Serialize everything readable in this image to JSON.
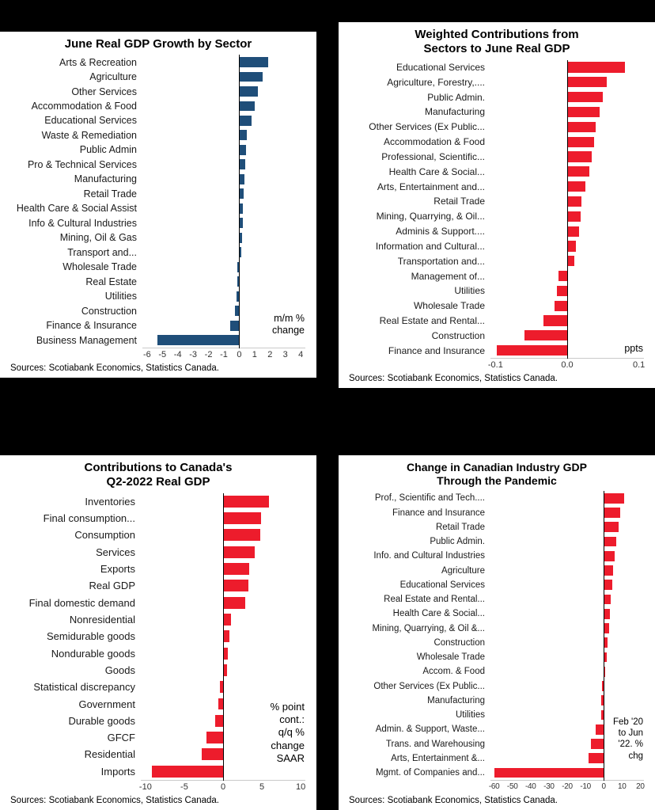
{
  "page": {
    "background": "#000000",
    "panel_background": "#ffffff"
  },
  "chart_data": [
    {
      "type": "bar",
      "orientation": "horizontal",
      "title_lines": [
        "June Real GDP Growth by Sector"
      ],
      "unit_note_lines": [
        "m/m %",
        "change"
      ],
      "sources": "Sources: Scotiabank Economics, Statistics Canada.",
      "bar_color": "#1f4e79",
      "xlim": [
        -6.3,
        4.3
      ],
      "xticks": [
        -6,
        -5,
        -4,
        -3,
        -2,
        -1,
        0,
        1,
        2,
        3,
        4
      ],
      "xtick_labels": [
        "-6",
        "-5",
        "-4",
        "-3",
        "-2",
        "-1",
        "0",
        "1",
        "2",
        "3",
        "4"
      ],
      "grid": false,
      "legend": false,
      "categories": [
        "Arts & Recreation",
        "Agriculture",
        "Other Services",
        "Accommodation & Food",
        "Educational Services",
        "Waste & Remediation",
        "Public Admin",
        "Pro & Technical Services",
        "Manufacturing",
        "Retail Trade",
        "Health Care & Social Assist",
        "Info & Cultural Industries",
        "Mining, Oil & Gas",
        "Transport and...",
        "Wholesale Trade",
        "Real Estate",
        "Utilities",
        "Construction",
        "Finance & Insurance",
        "Business Management"
      ],
      "values": [
        1.9,
        1.5,
        1.2,
        1.0,
        0.8,
        0.5,
        0.45,
        0.4,
        0.35,
        0.3,
        0.25,
        0.25,
        0.2,
        0.15,
        -0.1,
        -0.15,
        -0.2,
        -0.3,
        -0.6,
        -5.3
      ]
    },
    {
      "type": "bar",
      "orientation": "horizontal",
      "title_lines": [
        "Weighted Contributions from",
        "Sectors to June Real GDP"
      ],
      "unit_note_lines": [
        "ppts"
      ],
      "sources": "Sources: Scotiabank Economics, Statistics Canada.",
      "bar_color": "#ed1c2c",
      "xlim": [
        -0.107,
        0.107
      ],
      "xticks": [
        -0.1,
        0,
        0.1
      ],
      "xtick_labels": [
        "-0.1",
        "0.0",
        "0.1"
      ],
      "grid": false,
      "legend": false,
      "categories": [
        "Educational Services",
        "Agriculture, Forestry,....",
        "Public Admin.",
        "Manufacturing",
        "Other Services (Ex Public...",
        "Accommodation & Food",
        "Professional, Scientific...",
        "Health Care & Social...",
        "Arts, Entertainment and...",
        "Retail Trade",
        "Mining, Quarrying, & Oil...",
        "Adminis & Support....",
        "Information and Cultural...",
        "Transportation and...",
        "Management of...",
        "Utilities",
        "Wholesale Trade",
        "Real Estate and Rental...",
        "Construction",
        "Finance and Insurance"
      ],
      "values": [
        0.08,
        0.055,
        0.05,
        0.045,
        0.04,
        0.037,
        0.034,
        0.031,
        0.025,
        0.02,
        0.019,
        0.017,
        0.012,
        0.01,
        -0.012,
        -0.014,
        -0.018,
        -0.033,
        -0.06,
        -0.098
      ]
    },
    {
      "type": "bar",
      "orientation": "horizontal",
      "title_lines": [
        "Contributions to Canada's",
        "Q2-2022 Real GDP"
      ],
      "unit_note_lines": [
        "% point",
        "cont.:",
        "q/q %",
        "change",
        "SAAR"
      ],
      "sources": "Sources: Scotiabank Economics, Statistics Canada.",
      "bar_color": "#ed1c2c",
      "xlim": [
        -10.6,
        10.6
      ],
      "xticks": [
        -10,
        -5,
        0,
        5,
        10
      ],
      "xtick_labels": [
        "-10",
        "-5",
        "0",
        "5",
        "10"
      ],
      "grid": false,
      "legend": false,
      "categories": [
        "Inventories",
        "Final consumption...",
        "Consumption",
        "Services",
        "Exports",
        "Real GDP",
        "Final domestic demand",
        "Nonresidential",
        "Semidurable goods",
        "Nondurable goods",
        "Goods",
        "Statistical discrepancy",
        "Government",
        "Durable goods",
        "GFCF",
        "Residential",
        "Imports"
      ],
      "values": [
        5.9,
        4.9,
        4.8,
        4.1,
        3.4,
        3.3,
        2.9,
        1.0,
        0.8,
        0.6,
        0.5,
        -0.4,
        -0.6,
        -1.0,
        -2.1,
        -2.8,
        -9.2
      ]
    },
    {
      "type": "bar",
      "orientation": "horizontal",
      "title_lines": [
        "Change in Canadian Industry GDP",
        "Through the Pandemic"
      ],
      "unit_note_lines": [
        "Feb '20",
        "to Jun",
        "'22. %",
        "chg"
      ],
      "sources": "Sources: Scotiabank Economics, Statistics Canada.",
      "bar_color": "#ed1c2c",
      "xlim": [
        -62,
        22
      ],
      "xticks": [
        -60,
        -50,
        -40,
        -30,
        -20,
        -10,
        0,
        10,
        20
      ],
      "xtick_labels": [
        "-60",
        "-50",
        "-40",
        "-30",
        "-20",
        "-10",
        "0",
        "10",
        "20"
      ],
      "grid": false,
      "legend": false,
      "categories": [
        "Prof., Scientific and Tech....",
        "Finance and Insurance",
        "Retail Trade",
        "Public Admin.",
        "Info. and Cultural Industries",
        "Agriculture",
        "Educational Services",
        "Real Estate and Rental...",
        "Health Care & Social...",
        "Mining, Quarrying, & Oil &...",
        "Construction",
        "Wholesale Trade",
        "Accom. & Food",
        "Other Services (Ex Public...",
        "Manufacturing",
        "Utilities",
        "Admin. & Support, Waste...",
        "Trans. and Warehousing",
        "Arts, Entertainment &...",
        "Mgmt. of Companies and..."
      ],
      "values": [
        11,
        9,
        8,
        7,
        6,
        5,
        4.5,
        4,
        3.5,
        3,
        2,
        1.5,
        0.8,
        -0.8,
        -1.2,
        -1.5,
        -4.5,
        -7,
        -8.5,
        -60
      ]
    }
  ]
}
